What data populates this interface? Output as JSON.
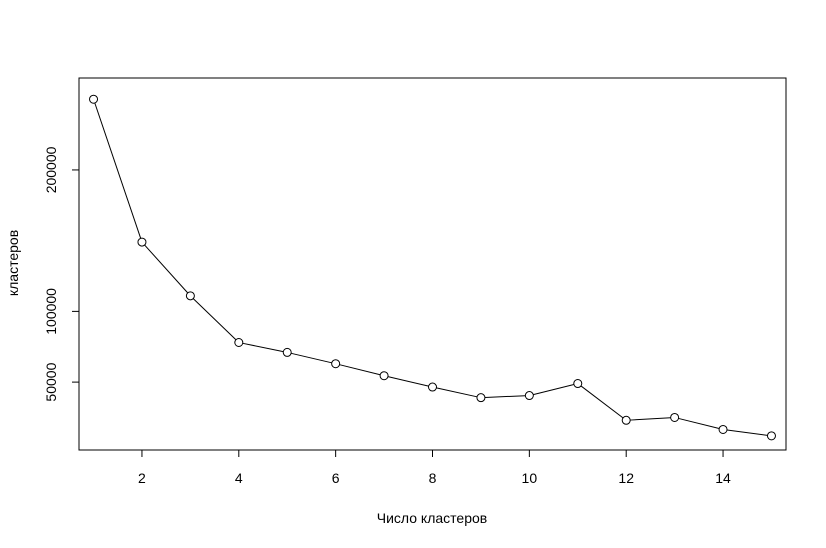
{
  "chart_data": {
    "type": "line",
    "title": "",
    "xlabel": "Число кластеров",
    "ylabel": "кластеров",
    "x": [
      1,
      2,
      3,
      4,
      5,
      6,
      7,
      8,
      9,
      10,
      11,
      12,
      13,
      14,
      15
    ],
    "series": [
      {
        "values": [
          250000,
          149000,
          111000,
          78000,
          71000,
          63000,
          54500,
          46500,
          39000,
          40500,
          49000,
          23000,
          25000,
          16500,
          12000
        ]
      }
    ],
    "xlim": [
      0.7,
      15.3
    ],
    "ylim": [
      2000,
      265000
    ],
    "xticks": [
      2,
      4,
      6,
      8,
      10,
      12,
      14
    ],
    "yticks": [
      50000,
      100000,
      200000
    ],
    "xtick_labels": [
      "2",
      "4",
      "6",
      "8",
      "10",
      "12",
      "14"
    ],
    "ytick_labels": [
      "50000",
      "100000",
      "200000"
    ],
    "grid": false,
    "marker": "open-circle",
    "line_color": "#000000"
  }
}
